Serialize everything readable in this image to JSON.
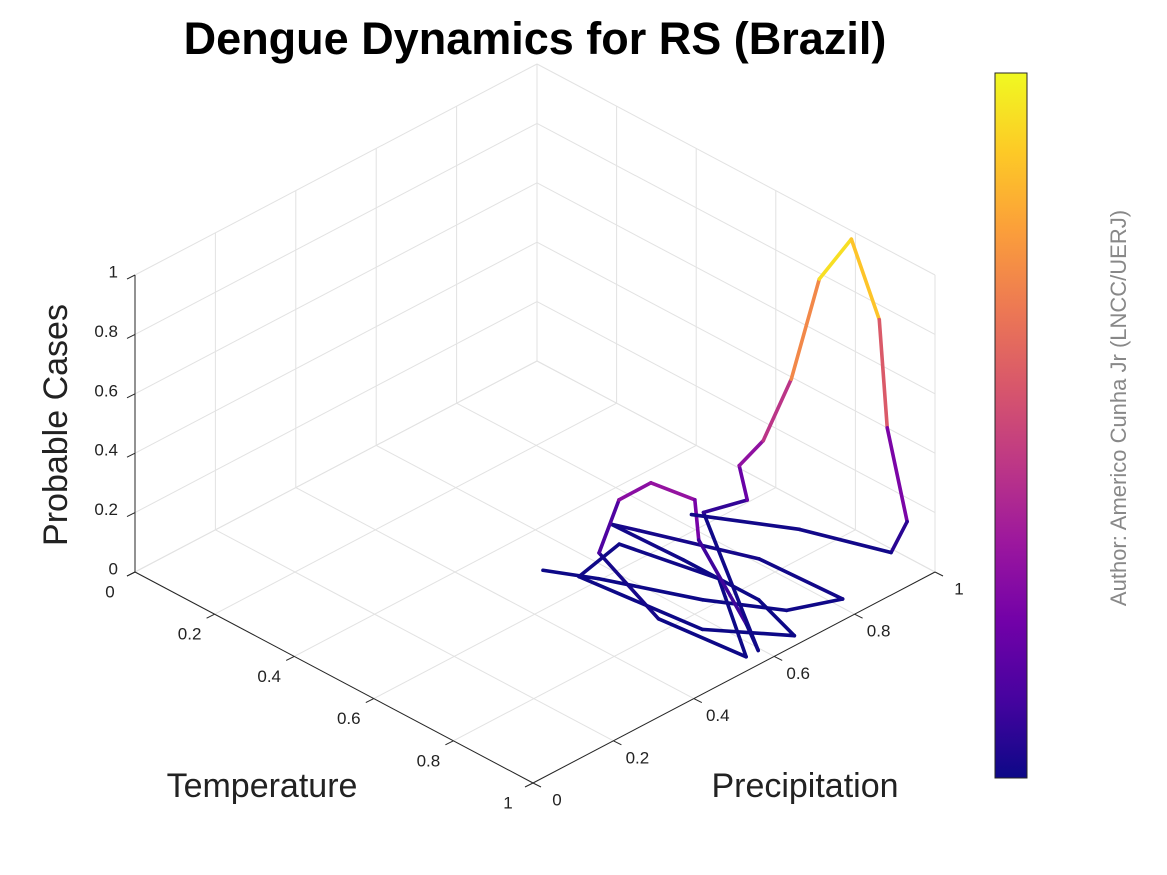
{
  "chart_data": {
    "type": "line3d",
    "title": "Dengue Dynamics for RS (Brazil)",
    "xlabel": "Temperature",
    "ylabel": "Precipitation",
    "zlabel": "Probable Cases",
    "annotation": "Author: Americo Cunha Jr (LNCC/UERJ)",
    "colormap": "plasma",
    "colorbar": true,
    "grid": true,
    "xlim": [
      0,
      1
    ],
    "ylim": [
      0,
      1
    ],
    "zlim": [
      0,
      1
    ],
    "xticks": [
      0,
      0.2,
      0.4,
      0.6,
      0.8,
      1
    ],
    "yticks": [
      0,
      0.2,
      0.4,
      0.6,
      0.8,
      1
    ],
    "zticks": [
      0,
      0.2,
      0.4,
      0.6,
      0.8,
      1
    ],
    "x": [
      0.52,
      0.61,
      0.79,
      0.92,
      0.97,
      0.77,
      0.56,
      0.51,
      0.67,
      0.86,
      0.99,
      0.86,
      0.58,
      0.56,
      0.76,
      0.98,
      0.78,
      0.57,
      0.61,
      0.68,
      0.74,
      0.77,
      0.91,
      0.98,
      0.59,
      0.7,
      0.7,
      0.72,
      0.75,
      0.78,
      0.81,
      0.86,
      0.88,
      0.93,
      0.92,
      0.75,
      0.58
    ],
    "y": [
      0.5,
      0.55,
      0.63,
      0.71,
      0.8,
      0.79,
      0.7,
      0.68,
      0.7,
      0.7,
      0.66,
      0.56,
      0.53,
      0.65,
      0.7,
      0.55,
      0.53,
      0.59,
      0.6,
      0.61,
      0.66,
      0.64,
      0.62,
      0.58,
      0.83,
      0.83,
      0.81,
      0.85,
      0.89,
      0.93,
      0.98,
      1.0,
      1.0,
      1.0,
      0.97,
      0.91,
      0.81
    ],
    "z": [
      0.02,
      0.02,
      0.02,
      0.02,
      0.03,
      0.03,
      0.04,
      0.04,
      0.02,
      0.02,
      0.02,
      0.02,
      0.02,
      0.03,
      0.02,
      0.02,
      0.02,
      0.05,
      0.25,
      0.35,
      0.3,
      0.2,
      0.03,
      0.02,
      0.03,
      0.15,
      0.28,
      0.35,
      0.55,
      0.88,
      1.0,
      0.75,
      0.4,
      0.12,
      0.03,
      0.03,
      0.03
    ]
  }
}
